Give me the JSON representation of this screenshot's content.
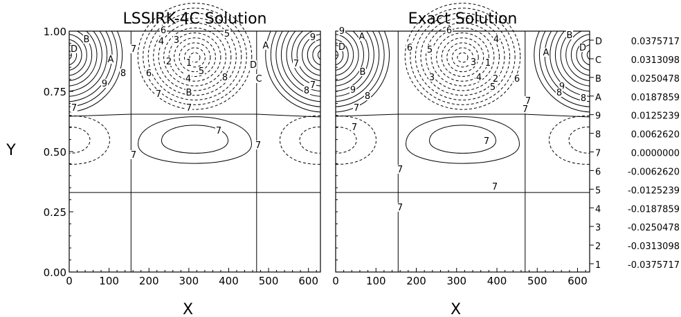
{
  "chart_data": [
    {
      "type": "contour",
      "title": "LSSIRK-4C Solution",
      "xlabel": "X",
      "ylabel": "Y",
      "xlim": [
        0,
        630
      ],
      "ylim": [
        0,
        1
      ],
      "x_ticks": [
        "0",
        "100",
        "200",
        "300",
        "400",
        "500",
        "600"
      ],
      "y_ticks": [
        "0.00",
        "0.25",
        "0.50",
        "0.75",
        "1.00"
      ],
      "contour_labels": [
        "D",
        "B",
        "A",
        "8",
        "9",
        "7",
        "6",
        "4",
        "3",
        "5",
        "2",
        "1",
        "5",
        "4",
        "6",
        "8",
        "7",
        "B",
        "D",
        "C",
        "A",
        "9",
        "7",
        "7",
        "8",
        "7",
        "7",
        "7",
        "7",
        "7"
      ]
    },
    {
      "type": "contour",
      "title": "Exact Solution",
      "xlabel": "X",
      "ylabel": "",
      "xlim": [
        0,
        630
      ],
      "ylim": [
        0,
        1
      ],
      "x_ticks": [
        "0",
        "100",
        "200",
        "300",
        "400",
        "500",
        "600"
      ],
      "y_ticks": [],
      "contour_labels": [
        "9",
        "A",
        "D",
        "B",
        "9",
        "8",
        "7",
        "6",
        "6",
        "5",
        "4",
        "3",
        "1",
        "2",
        "4",
        "3",
        "5",
        "6",
        "7",
        "7",
        "B",
        "A",
        "D",
        "9",
        "8",
        "8",
        "7",
        "7",
        "7",
        "7",
        "7"
      ]
    }
  ],
  "legend": {
    "levels": [
      {
        "key": "D",
        "value": "0.0375717"
      },
      {
        "key": "C",
        "value": "0.0313098"
      },
      {
        "key": "B",
        "value": "0.0250478"
      },
      {
        "key": "A",
        "value": "0.0187859"
      },
      {
        "key": "9",
        "value": "0.0125239"
      },
      {
        "key": "8",
        "value": "0.0062620"
      },
      {
        "key": "7",
        "value": "0.0000000"
      },
      {
        "key": "6",
        "value": "-0.0062620"
      },
      {
        "key": "5",
        "value": "-0.0125239"
      },
      {
        "key": "4",
        "value": "-0.0187859"
      },
      {
        "key": "3",
        "value": "-0.0250478"
      },
      {
        "key": "2",
        "value": "-0.0313098"
      },
      {
        "key": "1",
        "value": "-0.0375717"
      }
    ]
  }
}
